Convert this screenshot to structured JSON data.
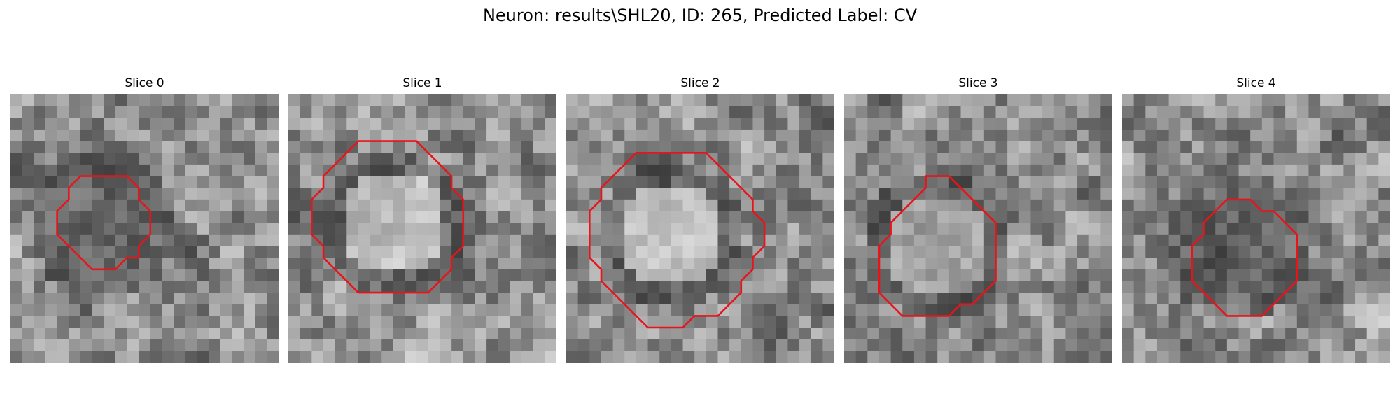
{
  "figure": {
    "title": "Neuron: results\\SHL20, ID: 265, Predicted Label: CV"
  },
  "slices": [
    {
      "title": "Slice 0",
      "contour": [
        [
          8,
          7
        ],
        [
          10,
          7
        ],
        [
          11,
          8
        ],
        [
          11,
          9
        ],
        [
          12,
          10
        ],
        [
          12,
          12
        ],
        [
          11,
          13
        ],
        [
          11,
          14
        ],
        [
          10,
          14
        ],
        [
          9,
          15
        ],
        [
          7,
          15
        ],
        [
          6,
          14
        ],
        [
          5,
          13
        ],
        [
          4,
          12
        ],
        [
          4,
          10
        ],
        [
          5,
          9
        ],
        [
          5,
          8
        ],
        [
          6,
          7
        ]
      ],
      "center": [
        8,
        11
      ],
      "core": "dark"
    },
    {
      "title": "Slice 1",
      "contour": [
        [
          6,
          4
        ],
        [
          7,
          4
        ],
        [
          11,
          4
        ],
        [
          12,
          5
        ],
        [
          13,
          6
        ],
        [
          14,
          7
        ],
        [
          14,
          8
        ],
        [
          15,
          9
        ],
        [
          15,
          13
        ],
        [
          14,
          14
        ],
        [
          14,
          15
        ],
        [
          13,
          16
        ],
        [
          12,
          17
        ],
        [
          9,
          17
        ],
        [
          6,
          17
        ],
        [
          5,
          16
        ],
        [
          4,
          15
        ],
        [
          3,
          14
        ],
        [
          3,
          13
        ],
        [
          2,
          12
        ],
        [
          2,
          9
        ],
        [
          3,
          8
        ],
        [
          3,
          7
        ],
        [
          4,
          6
        ],
        [
          5,
          5
        ]
      ],
      "center": [
        9,
        11
      ],
      "core": "bright"
    },
    {
      "title": "Slice 2",
      "contour": [
        [
          6,
          5
        ],
        [
          8,
          5
        ],
        [
          10,
          5
        ],
        [
          11,
          5
        ],
        [
          12,
          5
        ],
        [
          13,
          6
        ],
        [
          14,
          7
        ],
        [
          15,
          8
        ],
        [
          16,
          9
        ],
        [
          16,
          10
        ],
        [
          17,
          11
        ],
        [
          17,
          12
        ],
        [
          17,
          13
        ],
        [
          16,
          14
        ],
        [
          16,
          15
        ],
        [
          15,
          16
        ],
        [
          15,
          17
        ],
        [
          14,
          18
        ],
        [
          13,
          19
        ],
        [
          11,
          19
        ],
        [
          10,
          20
        ],
        [
          7,
          20
        ],
        [
          6,
          19
        ],
        [
          5,
          18
        ],
        [
          4,
          17
        ],
        [
          3,
          16
        ],
        [
          3,
          15
        ],
        [
          2,
          14
        ],
        [
          2,
          10
        ],
        [
          3,
          9
        ],
        [
          3,
          8
        ],
        [
          4,
          7
        ],
        [
          5,
          6
        ]
      ],
      "center": [
        9,
        12
      ],
      "core": "bright"
    },
    {
      "title": "Slice 3",
      "contour": [
        [
          7,
          7
        ],
        [
          9,
          7
        ],
        [
          10,
          8
        ],
        [
          11,
          9
        ],
        [
          12,
          10
        ],
        [
          13,
          11
        ],
        [
          13,
          16
        ],
        [
          12,
          17
        ],
        [
          11,
          18
        ],
        [
          10,
          18
        ],
        [
          9,
          19
        ],
        [
          7,
          19
        ],
        [
          5,
          19
        ],
        [
          4,
          18
        ],
        [
          3,
          17
        ],
        [
          3,
          16
        ],
        [
          3,
          13
        ],
        [
          4,
          12
        ],
        [
          4,
          11
        ],
        [
          5,
          10
        ],
        [
          6,
          9
        ],
        [
          7,
          8
        ]
      ],
      "center": [
        8,
        13
      ],
      "core": "mid"
    },
    {
      "title": "Slice 4",
      "contour": [
        [
          9,
          9
        ],
        [
          11,
          9
        ],
        [
          12,
          10
        ],
        [
          13,
          10
        ],
        [
          14,
          11
        ],
        [
          15,
          12
        ],
        [
          15,
          16
        ],
        [
          14,
          17
        ],
        [
          13,
          18
        ],
        [
          12,
          19
        ],
        [
          9,
          19
        ],
        [
          8,
          18
        ],
        [
          7,
          17
        ],
        [
          6,
          16
        ],
        [
          6,
          13
        ],
        [
          7,
          12
        ],
        [
          7,
          11
        ],
        [
          8,
          10
        ]
      ],
      "center": [
        10,
        13
      ],
      "core": "dark"
    }
  ]
}
